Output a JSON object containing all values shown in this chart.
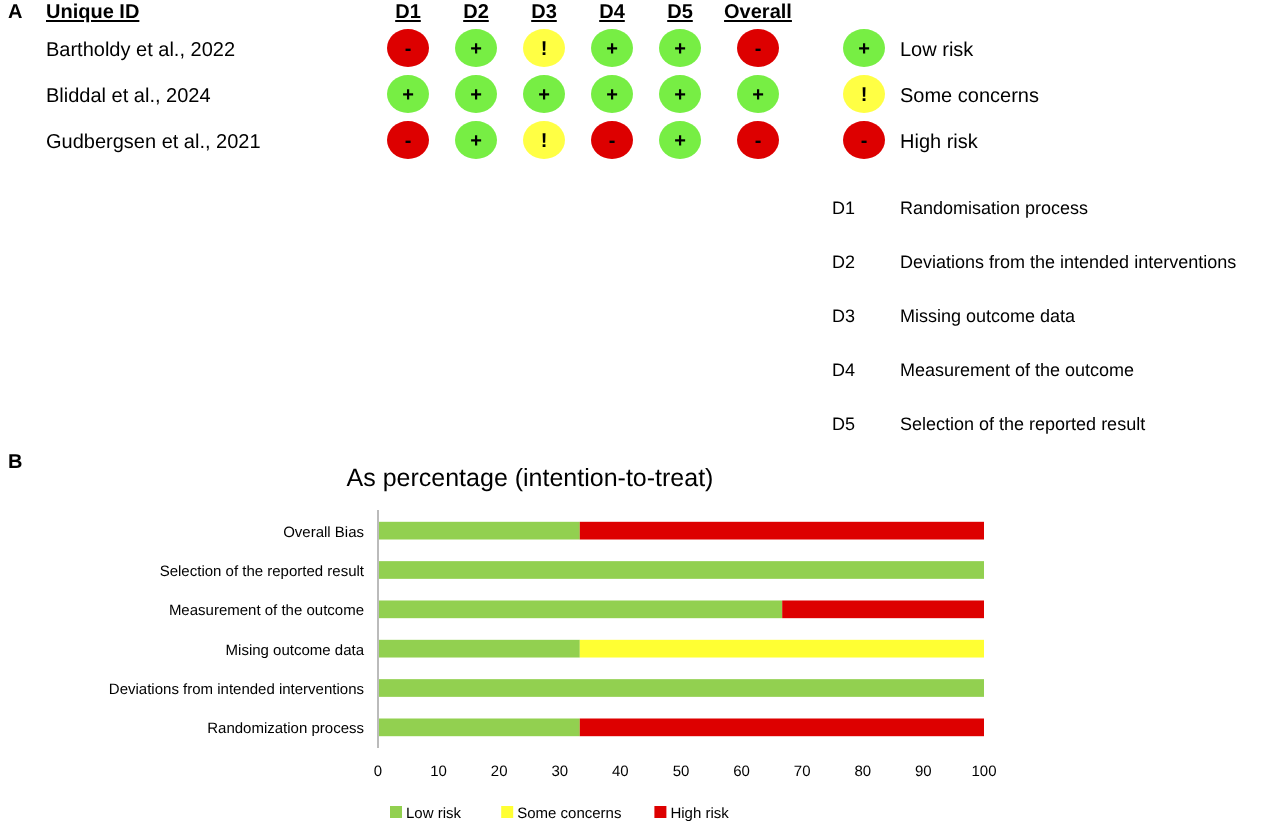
{
  "chart_data": [
    {
      "type": "other",
      "ylabel": "Unique ID",
      "categories": [
        "D1",
        "D2",
        "D3",
        "D4",
        "D5",
        "Overall"
      ],
      "y_categories": [
        "Bartholdy et al., 2022",
        "Bliddal et al., 2024",
        "Gudbergsen et al., 2021"
      ],
      "cell_labels": [
        [
          "-",
          "+",
          "!",
          "+",
          "+",
          "-"
        ],
        [
          "+",
          "+",
          "+",
          "+",
          "+",
          "+"
        ],
        [
          "-",
          "+",
          "!",
          "-",
          "+",
          "-"
        ]
      ],
      "colors": [
        "#dd0000",
        "#77ee44",
        "#ffff44",
        "#77ee44",
        "#77ee44",
        "#dd0000",
        "#77ee44",
        "#77ee44",
        "#77ee44",
        "#77ee44",
        "#77ee44",
        "#77ee44",
        "#dd0000",
        "#77ee44",
        "#ffff44",
        "#dd0000",
        "#77ee44",
        "#dd0000",
        "#77ee44",
        "#ffff44",
        "#dd0000"
      ],
      "annotations": [
        "A",
        "+",
        "Low risk",
        "!",
        "Some concerns",
        "-",
        "High risk",
        "D1",
        "Randomisation process",
        "D2",
        "Deviations from the intended interventions",
        "D3",
        "Missing outcome data",
        "D4",
        "Measurement of the outcome",
        "D5",
        "Selection of the reported result"
      ]
    },
    {
      "type": "bar",
      "orientation": "horizontal",
      "stacked": true,
      "title": "As percentage (intention-to-treat)",
      "categories": [
        "Overall Bias",
        "Selection of the reported result",
        "Measurement of the outcome",
        "Mising outcome data",
        "Deviations from intended interventions",
        "Randomization process"
      ],
      "series": [
        {
          "name": "Low risk",
          "color": "#92d050",
          "values": [
            33.3,
            100,
            66.7,
            33.3,
            100,
            33.3
          ]
        },
        {
          "name": "Some concerns",
          "color": "#ffff33",
          "values": [
            0,
            0,
            0,
            66.7,
            0,
            0
          ]
        },
        {
          "name": "High risk",
          "color": "#dd0000",
          "values": [
            66.7,
            0,
            33.3,
            0,
            0,
            66.7
          ]
        }
      ],
      "xlim": [
        0,
        100
      ],
      "xticks": [
        0,
        10,
        20,
        30,
        40,
        50,
        60,
        70,
        80,
        90,
        100
      ],
      "legend": "bottom",
      "annotations": [
        "B"
      ]
    }
  ]
}
